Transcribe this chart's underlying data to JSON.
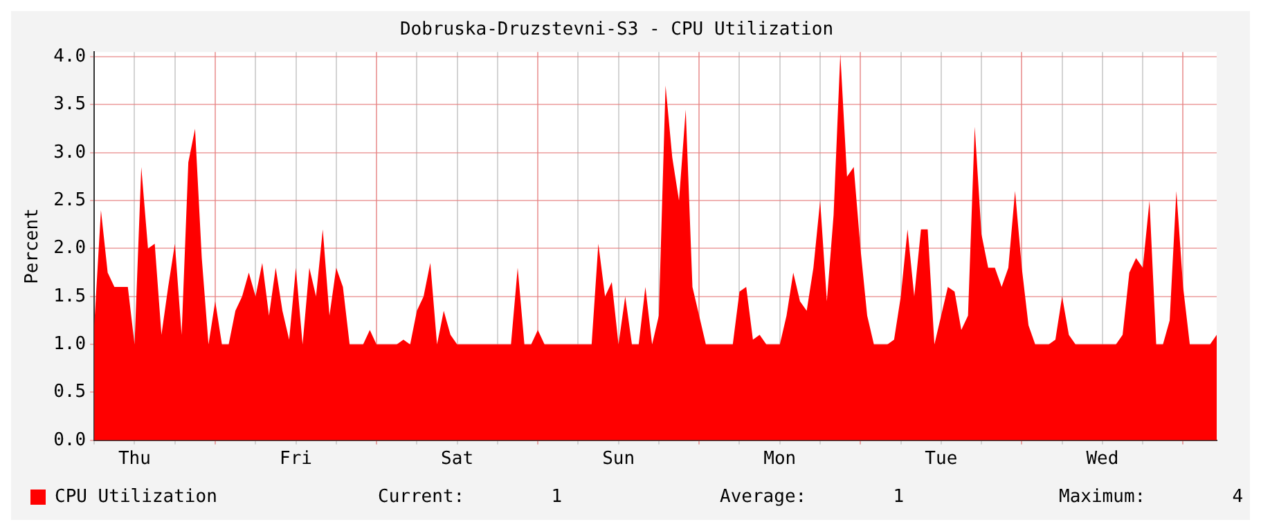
{
  "chart_data": {
    "type": "area",
    "title": "Dobruska-Druzstevni-S3 - CPU Utilization",
    "ylabel": "Percent",
    "categories": [
      null,
      null,
      null,
      null,
      null,
      null,
      "Thu",
      null,
      null,
      null,
      null,
      null,
      null,
      null,
      null,
      null,
      null,
      null,
      null,
      null,
      null,
      null,
      null,
      null,
      null,
      null,
      null,
      null,
      null,
      null,
      "Fri",
      null,
      null,
      null,
      null,
      null,
      null,
      null,
      null,
      null,
      null,
      null,
      null,
      null,
      null,
      null,
      null,
      null,
      null,
      null,
      null,
      null,
      null,
      null,
      "Sat",
      null,
      null,
      null,
      null,
      null,
      null,
      null,
      null,
      null,
      null,
      null,
      null,
      null,
      null,
      null,
      null,
      null,
      null,
      null,
      null,
      null,
      null,
      null,
      "Sun",
      null,
      null,
      null,
      null,
      null,
      null,
      null,
      null,
      null,
      null,
      null,
      null,
      null,
      null,
      null,
      null,
      null,
      null,
      null,
      null,
      null,
      null,
      null,
      "Mon",
      null,
      null,
      null,
      null,
      null,
      null,
      null,
      null,
      null,
      null,
      null,
      null,
      null,
      null,
      null,
      null,
      null,
      null,
      null,
      null,
      null,
      null,
      null,
      "Tue",
      null,
      null,
      null,
      null,
      null,
      null,
      null,
      null,
      null,
      null,
      null,
      null,
      null,
      null,
      null,
      null,
      null,
      null,
      null,
      null,
      null,
      null,
      null,
      "Wed",
      null,
      null,
      null,
      null,
      null,
      null,
      null,
      null,
      null,
      null,
      null,
      null,
      null,
      null,
      null,
      null,
      null
    ],
    "series": [
      {
        "name": "CPU Utilization",
        "color": "#ff0000",
        "values": [
          1.2,
          2.4,
          1.75,
          1.6,
          1.6,
          1.6,
          1.0,
          2.85,
          2.0,
          2.05,
          1.1,
          1.6,
          2.05,
          1.1,
          2.9,
          3.25,
          1.9,
          1.0,
          1.45,
          1.0,
          1.0,
          1.35,
          1.5,
          1.75,
          1.5,
          1.85,
          1.3,
          1.8,
          1.35,
          1.05,
          1.8,
          1.0,
          1.8,
          1.5,
          2.2,
          1.3,
          1.8,
          1.6,
          1.0,
          1.0,
          1.0,
          1.15,
          1.0,
          1.0,
          1.0,
          1.0,
          1.05,
          1.0,
          1.35,
          1.5,
          1.85,
          1.0,
          1.35,
          1.1,
          1.0,
          1.0,
          1.0,
          1.0,
          1.0,
          1.0,
          1.0,
          1.0,
          1.0,
          1.8,
          1.0,
          1.0,
          1.15,
          1.0,
          1.0,
          1.0,
          1.0,
          1.0,
          1.0,
          1.0,
          1.0,
          2.05,
          1.5,
          1.65,
          1.0,
          1.5,
          1.0,
          1.0,
          1.6,
          1.0,
          1.3,
          3.7,
          2.95,
          2.5,
          3.45,
          1.6,
          1.3,
          1.0,
          1.0,
          1.0,
          1.0,
          1.0,
          1.55,
          1.6,
          1.05,
          1.1,
          1.0,
          1.0,
          1.0,
          1.3,
          1.75,
          1.45,
          1.35,
          1.8,
          2.5,
          1.45,
          2.35,
          4.03,
          2.75,
          2.85,
          2.0,
          1.3,
          1.0,
          1.0,
          1.0,
          1.05,
          1.5,
          2.2,
          1.5,
          2.2,
          2.2,
          1.0,
          1.3,
          1.6,
          1.55,
          1.15,
          1.3,
          3.27,
          2.15,
          1.8,
          1.8,
          1.6,
          1.8,
          2.6,
          1.8,
          1.2,
          1.0,
          1.0,
          1.0,
          1.05,
          1.5,
          1.1,
          1.0,
          1.0,
          1.0,
          1.0,
          1.0,
          1.0,
          1.0,
          1.1,
          1.75,
          1.9,
          1.8,
          2.5,
          1.0,
          1.0,
          1.25,
          2.6,
          1.6,
          1.0,
          1.0,
          1.0,
          1.0,
          1.1
        ]
      }
    ],
    "ylim": [
      0,
      4.05
    ],
    "yticks": [
      {
        "value": 0,
        "label": "0.0"
      },
      {
        "value": 0.5,
        "label": "0.5"
      },
      {
        "value": 1,
        "label": "1.0"
      },
      {
        "value": 1.5,
        "label": "1.5"
      },
      {
        "value": 2,
        "label": "2.0"
      },
      {
        "value": 2.5,
        "label": "2.5"
      },
      {
        "value": 3,
        "label": "3.0"
      },
      {
        "value": 3.5,
        "label": "3.5"
      },
      {
        "value": 4,
        "label": "4.0"
      }
    ],
    "grid": true,
    "legend": "bottom left",
    "annotations": [
      "Current:        1",
      "Average:        1",
      "Maximum:        4"
    ]
  }
}
